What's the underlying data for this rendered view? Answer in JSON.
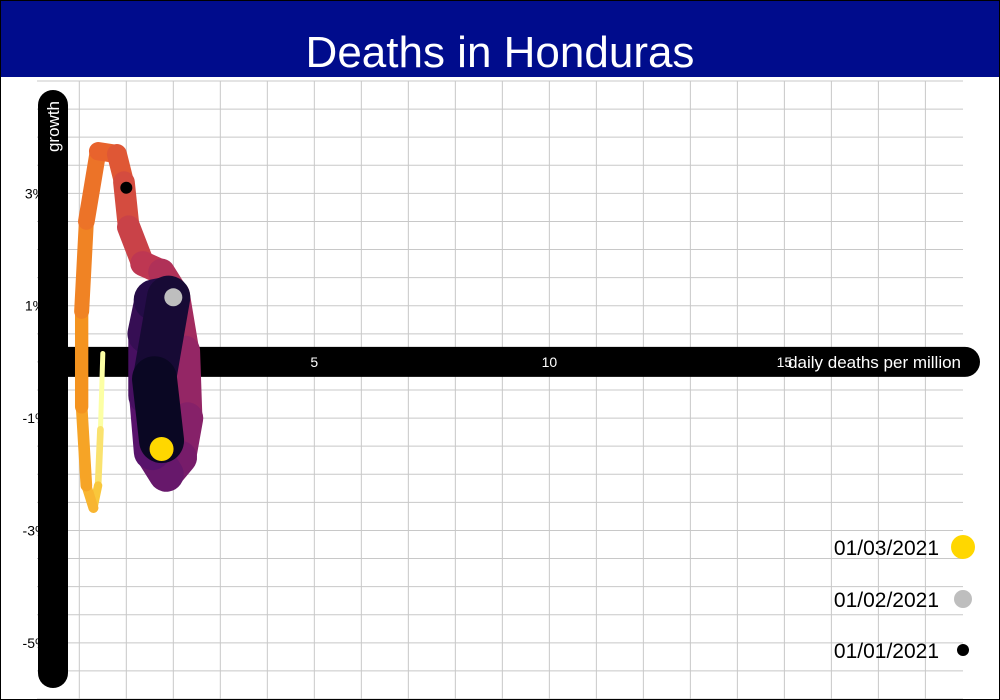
{
  "title": "Deaths in Honduras",
  "chart_data": {
    "type": "scatter",
    "title": "Deaths in Honduras",
    "xlabel": "daily deaths per million",
    "ylabel": "growth",
    "xlim": [
      -0.9,
      18.8
    ],
    "ylim": [
      -6.0,
      5.0
    ],
    "grid": true,
    "x_ticks": [
      {
        "value": 5,
        "label": "5"
      },
      {
        "value": 10,
        "label": "10"
      },
      {
        "value": 15,
        "label": "15"
      }
    ],
    "y_ticks": [
      {
        "value": 3,
        "label": "3%"
      },
      {
        "value": 1,
        "label": "1%"
      },
      {
        "value": -1,
        "label": "-1%"
      },
      {
        "value": -3,
        "label": "-3%"
      },
      {
        "value": -5,
        "label": "-5%"
      }
    ],
    "colormap": "inferno",
    "legend_position": "bottom-right",
    "series": [
      {
        "values": [
          {
            "x": 0.5,
            "y": 0.15
          },
          {
            "x": 0.45,
            "y": -1.2
          },
          {
            "x": 0.4,
            "y": -2.2
          },
          {
            "x": 0.3,
            "y": -2.6
          },
          {
            "x": 0.15,
            "y": -2.2
          },
          {
            "x": 0.05,
            "y": -0.8
          },
          {
            "x": 0.05,
            "y": 0.9
          },
          {
            "x": 0.15,
            "y": 2.5
          },
          {
            "x": 0.4,
            "y": 3.75
          },
          {
            "x": 0.8,
            "y": 3.7
          },
          {
            "x": 0.95,
            "y": 3.2
          },
          {
            "x": 1.05,
            "y": 2.4
          },
          {
            "x": 1.35,
            "y": 1.75
          },
          {
            "x": 1.75,
            "y": 1.6
          },
          {
            "x": 2.05,
            "y": 1.2
          },
          {
            "x": 2.25,
            "y": 0.2
          },
          {
            "x": 2.3,
            "y": -1.0
          },
          {
            "x": 2.15,
            "y": -1.7
          },
          {
            "x": 1.85,
            "y": -2.0
          },
          {
            "x": 1.55,
            "y": -1.6
          },
          {
            "x": 1.45,
            "y": -0.6
          },
          {
            "x": 1.45,
            "y": 0.5
          },
          {
            "x": 1.6,
            "y": 1.1
          },
          {
            "x": 1.9,
            "y": 1.15
          },
          {
            "x": 1.6,
            "y": -0.3
          },
          {
            "x": 1.75,
            "y": -1.4
          }
        ]
      }
    ],
    "highlights": [
      {
        "date": "01/01/2021",
        "x": 1.0,
        "y": 3.1,
        "color": "#000000"
      },
      {
        "date": "01/02/2021",
        "x": 2.0,
        "y": 1.15,
        "color": "#bebebe"
      },
      {
        "date": "01/03/2021",
        "x": 1.75,
        "y": -1.55,
        "color": "#ffd700"
      }
    ]
  },
  "legend": {
    "items": [
      {
        "label": "01/03/2021",
        "color": "#ffd700"
      },
      {
        "label": "01/02/2021",
        "color": "#bebebe"
      },
      {
        "label": "01/01/2021",
        "color": "#000000"
      }
    ]
  },
  "colors": {
    "title_background": "#000c8c",
    "title_text": "#ffffff",
    "axis_bar": "#000000",
    "grid": "#c8c8c8"
  }
}
